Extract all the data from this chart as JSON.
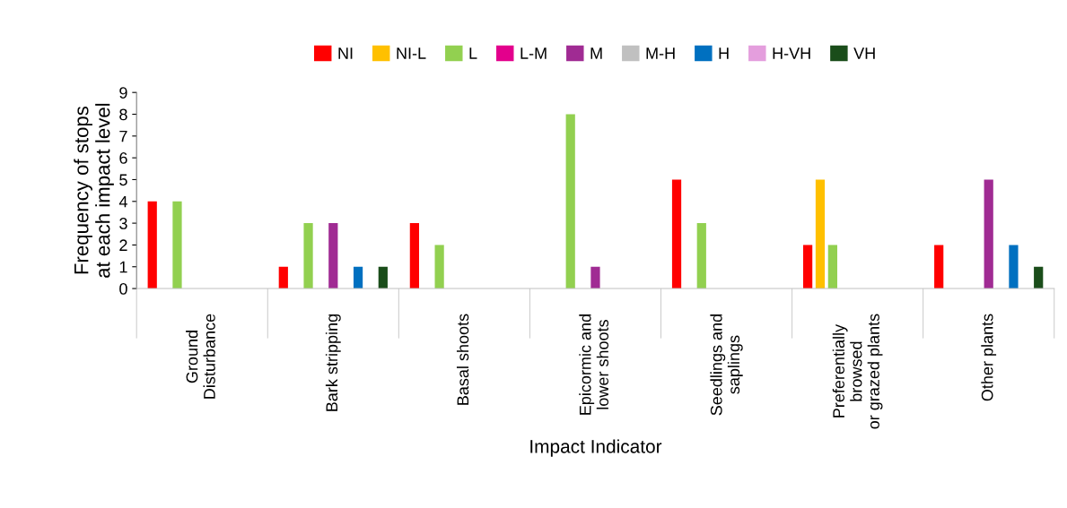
{
  "chart_data": {
    "type": "bar",
    "xlabel": "Impact Indicator",
    "ylabel": "Frequency of stops\nat each impact level",
    "categories": [
      "Ground\nDisturbance",
      "Bark stripping",
      "Basal shoots",
      "Epicormic and\nlower shoots",
      "Seedlings and\nsaplings",
      "Preferentially\nbrowsed\nor grazed plants",
      "Other plants"
    ],
    "series": [
      {
        "name": "NI",
        "color": "#ff0000",
        "values": [
          4,
          1,
          3,
          0,
          5,
          2,
          2
        ]
      },
      {
        "name": "NI-L",
        "color": "#ffc000",
        "values": [
          0,
          0,
          0,
          0,
          0,
          5,
          0
        ]
      },
      {
        "name": "L",
        "color": "#92d050",
        "values": [
          4,
          3,
          2,
          8,
          3,
          2,
          0
        ]
      },
      {
        "name": "L-M",
        "color": "#e3008c",
        "values": [
          0,
          0,
          0,
          0,
          0,
          0,
          0
        ]
      },
      {
        "name": "M",
        "color": "#a02b93",
        "values": [
          0,
          3,
          0,
          1,
          0,
          0,
          5
        ]
      },
      {
        "name": "M-H",
        "color": "#c0c0c0",
        "values": [
          0,
          0,
          0,
          0,
          0,
          0,
          0
        ]
      },
      {
        "name": "H",
        "color": "#0070c0",
        "values": [
          0,
          1,
          0,
          0,
          0,
          0,
          2
        ]
      },
      {
        "name": "H-VH",
        "color": "#e49edd",
        "values": [
          0,
          0,
          0,
          0,
          0,
          0,
          0
        ]
      },
      {
        "name": "VH",
        "color": "#1a4d1a",
        "values": [
          0,
          1,
          0,
          0,
          0,
          0,
          1
        ]
      }
    ],
    "ylim": [
      0,
      9
    ],
    "yticks": [
      0,
      1,
      2,
      3,
      4,
      5,
      6,
      7,
      8,
      9
    ],
    "grid": false,
    "legend": "top"
  }
}
